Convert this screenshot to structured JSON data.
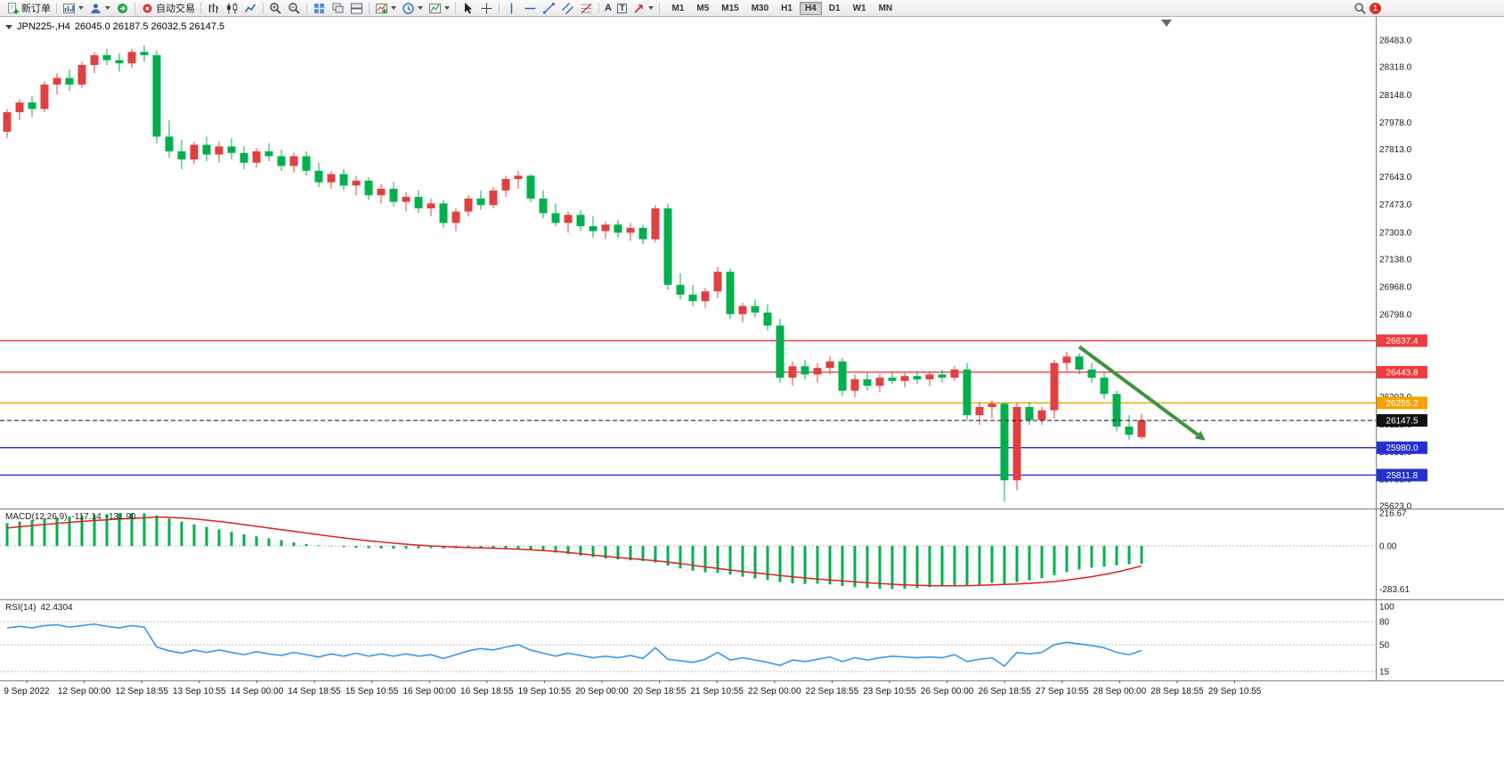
{
  "toolbar": {
    "new_order_label": "新订单",
    "autotrading_label": "自动交易",
    "timeframes": [
      "M1",
      "M5",
      "M15",
      "M30",
      "H1",
      "H4",
      "D1",
      "W1",
      "MN"
    ],
    "active_timeframe": "H4",
    "notification_count": "1",
    "text_tool_glyph": "A",
    "text_label_tool_glyph": "T"
  },
  "chart": {
    "symbol_period": "JPN225-,H4",
    "ohlc_text": "26045.0 26187.5 26032.5 26147.5"
  },
  "indicators": {
    "macd_name": "MACD(12,26,9)",
    "macd_value_main": "-117.14",
    "macd_value_signal": "-131.90",
    "rsi_name": "RSI(14)",
    "rsi_value": "42.4304"
  },
  "chart_data": {
    "type": "candlestick",
    "symbol": "JPN225-",
    "timeframe": "H4",
    "current": {
      "open": 26045.0,
      "high": 26187.5,
      "low": 26032.5,
      "close": 26147.5
    },
    "colors": {
      "up": "#e04040",
      "down": "#00b04c",
      "macd_histogram": "#00b04c",
      "macd_signal": "#e02020",
      "rsi_line": "#3d96e8"
    },
    "price_axis": {
      "labels": [
        28483,
        28318,
        28148,
        27978,
        27813,
        27643,
        27473,
        27303,
        27138,
        26968,
        26798,
        26628,
        26458,
        26293,
        26123,
        25953,
        25788,
        25623
      ]
    },
    "hlines": [
      {
        "price": 26637.4,
        "color": "#f23b3b",
        "name": "resistance-line-upper"
      },
      {
        "price": 26443.8,
        "color": "#f23b3b",
        "name": "resistance-line-lower"
      },
      {
        "price": 26255.2,
        "color": "#f5a300",
        "name": "pivot-line"
      },
      {
        "price": 25980.0,
        "color": "#2430d0",
        "name": "support-line-upper"
      },
      {
        "price": 25811.8,
        "color": "#2430d0",
        "name": "support-line-lower"
      }
    ],
    "current_price_line": {
      "price": 26147.5,
      "color": "#111111"
    },
    "annotations": {
      "arrow": {
        "from": {
          "index": 86,
          "price": 26600
        },
        "to": {
          "index": 95.5,
          "price": 26060
        },
        "color": "#3f9240"
      }
    },
    "candles": [
      [
        27920,
        28060,
        27880,
        28040
      ],
      [
        28040,
        28120,
        27990,
        28100
      ],
      [
        28100,
        28140,
        28010,
        28060
      ],
      [
        28060,
        28230,
        28040,
        28210
      ],
      [
        28210,
        28280,
        28150,
        28250
      ],
      [
        28250,
        28300,
        28170,
        28210
      ],
      [
        28210,
        28350,
        28190,
        28330
      ],
      [
        28330,
        28410,
        28280,
        28390
      ],
      [
        28390,
        28430,
        28330,
        28360
      ],
      [
        28360,
        28400,
        28290,
        28340
      ],
      [
        28340,
        28430,
        28310,
        28410
      ],
      [
        28410,
        28450,
        28350,
        28390
      ],
      [
        28390,
        28420,
        27850,
        27890
      ],
      [
        27890,
        27990,
        27760,
        27800
      ],
      [
        27800,
        27870,
        27690,
        27750
      ],
      [
        27750,
        27860,
        27720,
        27840
      ],
      [
        27840,
        27890,
        27740,
        27780
      ],
      [
        27780,
        27860,
        27730,
        27830
      ],
      [
        27830,
        27880,
        27750,
        27790
      ],
      [
        27790,
        27830,
        27690,
        27730
      ],
      [
        27730,
        27820,
        27700,
        27800
      ],
      [
        27800,
        27850,
        27740,
        27770
      ],
      [
        27770,
        27810,
        27680,
        27710
      ],
      [
        27710,
        27790,
        27670,
        27770
      ],
      [
        27770,
        27800,
        27650,
        27680
      ],
      [
        27680,
        27730,
        27580,
        27610
      ],
      [
        27610,
        27680,
        27570,
        27660
      ],
      [
        27660,
        27690,
        27560,
        27590
      ],
      [
        27590,
        27650,
        27530,
        27620
      ],
      [
        27620,
        27640,
        27500,
        27530
      ],
      [
        27530,
        27600,
        27480,
        27570
      ],
      [
        27570,
        27610,
        27460,
        27490
      ],
      [
        27490,
        27550,
        27430,
        27520
      ],
      [
        27520,
        27560,
        27420,
        27450
      ],
      [
        27450,
        27510,
        27400,
        27480
      ],
      [
        27480,
        27500,
        27330,
        27360
      ],
      [
        27360,
        27450,
        27310,
        27430
      ],
      [
        27430,
        27530,
        27400,
        27510
      ],
      [
        27510,
        27560,
        27440,
        27470
      ],
      [
        27470,
        27580,
        27450,
        27560
      ],
      [
        27560,
        27650,
        27520,
        27630
      ],
      [
        27630,
        27680,
        27570,
        27650
      ],
      [
        27650,
        27660,
        27490,
        27510
      ],
      [
        27510,
        27560,
        27390,
        27420
      ],
      [
        27420,
        27480,
        27340,
        27360
      ],
      [
        27360,
        27430,
        27300,
        27410
      ],
      [
        27410,
        27440,
        27310,
        27340
      ],
      [
        27340,
        27400,
        27270,
        27310
      ],
      [
        27310,
        27370,
        27260,
        27350
      ],
      [
        27350,
        27380,
        27270,
        27300
      ],
      [
        27300,
        27360,
        27250,
        27330
      ],
      [
        27330,
        27350,
        27230,
        27260
      ],
      [
        27260,
        27470,
        27240,
        27450
      ],
      [
        27450,
        27480,
        26950,
        26980
      ],
      [
        26980,
        27050,
        26890,
        26920
      ],
      [
        26920,
        26980,
        26850,
        26880
      ],
      [
        26880,
        26960,
        26840,
        26940
      ],
      [
        26940,
        27090,
        26900,
        27060
      ],
      [
        27060,
        27080,
        26770,
        26800
      ],
      [
        26800,
        26870,
        26750,
        26850
      ],
      [
        26850,
        26890,
        26780,
        26810
      ],
      [
        26810,
        26860,
        26700,
        26730
      ],
      [
        26730,
        26770,
        26380,
        26410
      ],
      [
        26410,
        26510,
        26360,
        26480
      ],
      [
        26480,
        26520,
        26400,
        26430
      ],
      [
        26430,
        26500,
        26380,
        26470
      ],
      [
        26470,
        26540,
        26430,
        26510
      ],
      [
        26510,
        26530,
        26300,
        26330
      ],
      [
        26330,
        26430,
        26290,
        26400
      ],
      [
        26400,
        26440,
        26330,
        26360
      ],
      [
        26360,
        26430,
        26320,
        26410
      ],
      [
        26410,
        26450,
        26370,
        26390
      ],
      [
        26390,
        26440,
        26350,
        26420
      ],
      [
        26420,
        26450,
        26370,
        26400
      ],
      [
        26400,
        26450,
        26360,
        26430
      ],
      [
        26430,
        26460,
        26380,
        26410
      ],
      [
        26410,
        26480,
        26390,
        26460
      ],
      [
        26460,
        26500,
        26150,
        26180
      ],
      [
        26180,
        26260,
        26120,
        26230
      ],
      [
        26230,
        26270,
        26160,
        26250
      ],
      [
        26250,
        26260,
        25650,
        25780
      ],
      [
        25780,
        26260,
        25720,
        26230
      ],
      [
        26230,
        26260,
        26120,
        26150
      ],
      [
        26150,
        26230,
        26120,
        26210
      ],
      [
        26210,
        26520,
        26160,
        26500
      ],
      [
        26500,
        26570,
        26450,
        26540
      ],
      [
        26540,
        26560,
        26430,
        26460
      ],
      [
        26460,
        26500,
        26380,
        26410
      ],
      [
        26410,
        26440,
        26280,
        26310
      ],
      [
        26310,
        26330,
        26080,
        26110
      ],
      [
        26110,
        26180,
        26030,
        26060
      ],
      [
        26045,
        26187.5,
        26032.5,
        26147.5
      ]
    ],
    "macd": {
      "axis_labels": [
        216.67,
        0,
        -283.61
      ],
      "histogram": [
        150,
        160,
        170,
        178,
        186,
        194,
        200,
        206,
        210,
        214,
        216,
        214,
        200,
        180,
        160,
        142,
        125,
        108,
        92,
        77,
        63,
        50,
        38,
        24,
        12,
        4,
        -3,
        -8,
        -12,
        -15,
        -17,
        -18,
        -17,
        -15,
        -14,
        -16,
        -15,
        -13,
        -12,
        -14,
        -17,
        -20,
        -26,
        -34,
        -44,
        -54,
        -64,
        -74,
        -82,
        -88,
        -94,
        -99,
        -109,
        -129,
        -148,
        -163,
        -173,
        -177,
        -188,
        -202,
        -214,
        -224,
        -237,
        -246,
        -250,
        -248,
        -253,
        -263,
        -271,
        -277,
        -281,
        -283,
        -281,
        -277,
        -271,
        -264,
        -257,
        -262,
        -254,
        -244,
        -250,
        -238,
        -226,
        -212,
        -192,
        -172,
        -155,
        -143,
        -136,
        -128,
        -121,
        -117.14
      ],
      "signal": [
        118,
        126,
        134,
        141,
        148,
        155,
        161,
        167,
        172,
        177,
        181,
        185,
        190,
        188,
        184,
        178,
        170,
        161,
        151,
        140,
        129,
        118,
        107,
        96,
        85,
        74,
        63,
        53,
        43,
        34,
        26,
        18,
        11,
        5,
        0,
        -4,
        -8,
        -11,
        -13,
        -15,
        -18,
        -21,
        -25,
        -30,
        -36,
        -43,
        -51,
        -60,
        -68,
        -76,
        -83,
        -90,
        -97,
        -106,
        -116,
        -127,
        -138,
        -148,
        -158,
        -168,
        -177,
        -186,
        -195,
        -203,
        -211,
        -218,
        -224,
        -230,
        -236,
        -242,
        -247,
        -252,
        -256,
        -259,
        -261,
        -262,
        -262,
        -261,
        -259,
        -256,
        -253,
        -250,
        -246,
        -241,
        -234,
        -225,
        -214,
        -202,
        -188,
        -172,
        -152,
        -131.9
      ]
    },
    "rsi": {
      "axis_labels": [
        100,
        80,
        50,
        15
      ],
      "levels": [
        80,
        50,
        15
      ],
      "values": [
        72,
        74,
        72,
        75,
        76,
        73,
        75,
        77,
        74,
        72,
        75,
        73,
        47,
        42,
        39,
        43,
        40,
        43,
        40,
        37,
        41,
        38,
        36,
        40,
        37,
        34,
        38,
        35,
        39,
        35,
        38,
        35,
        38,
        35,
        37,
        32,
        37,
        42,
        45,
        43,
        47,
        50,
        43,
        39,
        35,
        39,
        36,
        33,
        35,
        33,
        36,
        32,
        46,
        31,
        29,
        27,
        31,
        40,
        30,
        33,
        30,
        27,
        23,
        30,
        28,
        31,
        34,
        28,
        33,
        30,
        33,
        35,
        34,
        33,
        34,
        33,
        37,
        28,
        31,
        33,
        22,
        40,
        38,
        40,
        50,
        53,
        51,
        49,
        46,
        40,
        37,
        42.43
      ]
    },
    "time_labels": [
      "9 Sep 2022",
      "12 Sep 00:00",
      "12 Sep 18:55",
      "13 Sep 10:55",
      "14 Sep 00:00",
      "14 Sep 18:55",
      "15 Sep 10:55",
      "16 Sep 00:00",
      "16 Sep 18:55",
      "19 Sep 10:55",
      "20 Sep 00:00",
      "20 Sep 18:55",
      "21 Sep 10:55",
      "22 Sep 00:00",
      "22 Sep 18:55",
      "23 Sep 10:55",
      "26 Sep 00:00",
      "26 Sep 18:55",
      "27 Sep 10:55",
      "28 Sep 00:00",
      "28 Sep 18:55",
      "29 Sep 10:55"
    ]
  }
}
